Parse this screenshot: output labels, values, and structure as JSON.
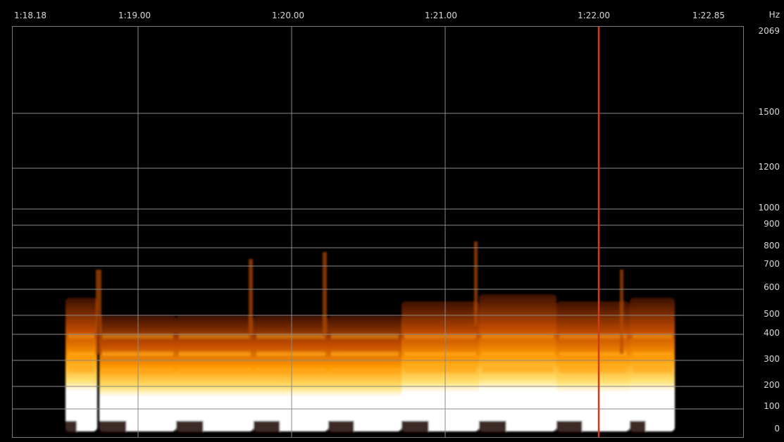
{
  "time_axis": {
    "start_label": "1:18.18",
    "end_label": "1:22.85",
    "ticks": [
      "1:19.00",
      "1:20.00",
      "1:21.00",
      "1:22.00"
    ]
  },
  "freq_axis": {
    "unit": "Hz",
    "top_label": "2069",
    "ticks": [
      "1500",
      "1200",
      "1000",
      "900",
      "800",
      "700",
      "600",
      "500",
      "400",
      "300",
      "200",
      "100",
      "0"
    ]
  },
  "colors": {
    "background": "#000000",
    "grid": "#8a8a8a",
    "playhead": "#d23a1a",
    "energy_low": "#5a1e00",
    "energy_mid": "#ff9a00",
    "energy_high": "#ffffff"
  },
  "playhead": {
    "time_label": "1:22.06"
  }
}
